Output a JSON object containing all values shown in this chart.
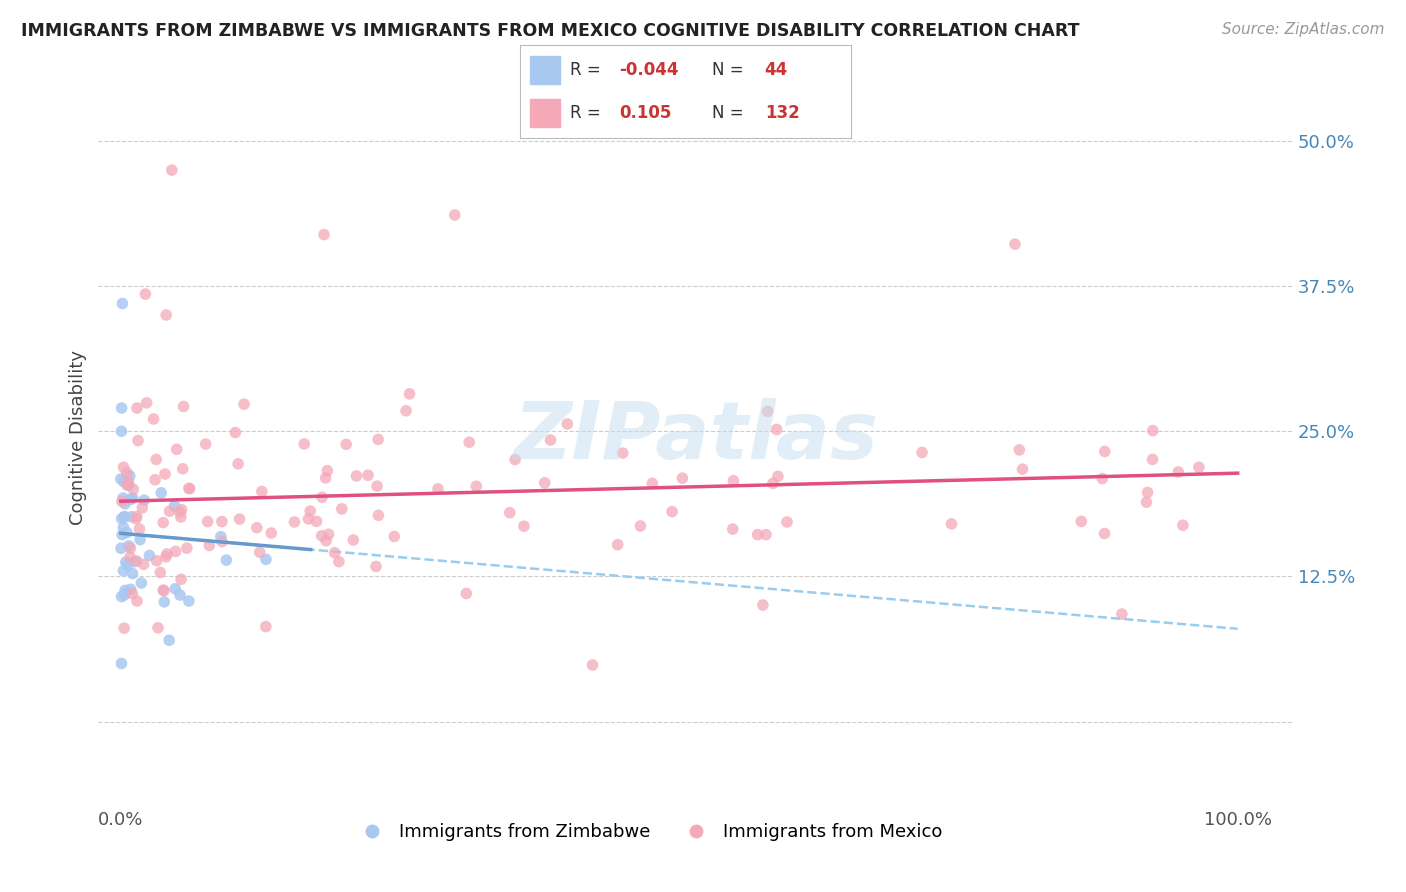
{
  "title": "IMMIGRANTS FROM ZIMBABWE VS IMMIGRANTS FROM MEXICO COGNITIVE DISABILITY CORRELATION CHART",
  "source": "Source: ZipAtlas.com",
  "ylabel": "Cognitive Disability",
  "background_color": "#ffffff",
  "watermark_text": "ZIPatlas",
  "legend_R1": "-0.044",
  "legend_N1": "44",
  "legend_R2": "0.105",
  "legend_N2": "132",
  "color_zim": "#a8c8f0",
  "color_mex": "#f4a8b8",
  "line_color_zim": "#6699cc",
  "line_color_mex": "#e05080",
  "line_color_zim_dashed": "#99ccee",
  "marker_size": 70,
  "zim_alpha": 0.85,
  "mex_alpha": 0.75,
  "y_ticks": [
    0.0,
    0.125,
    0.25,
    0.375,
    0.5
  ],
  "y_tick_labels": [
    "",
    "12.5%",
    "25.0%",
    "37.5%",
    "50.0%"
  ],
  "xlim": [
    -0.02,
    1.05
  ],
  "ylim": [
    -0.07,
    0.56
  ],
  "label_zim": "Immigrants from Zimbabwe",
  "label_mex": "Immigrants from Mexico"
}
